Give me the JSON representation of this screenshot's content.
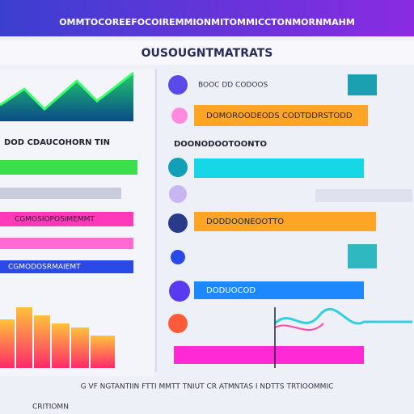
{
  "header": {
    "banner": "OMMTOCOREEFOCOIREMMIONMITOMMICCTONMORNMAHM",
    "title": "OUSOUGNTMATRATS"
  },
  "left": {
    "rows": [
      "DOD CDAUCOHORN TIN",
      "CGMOSIOPOSIMEMMT",
      "CGMODOSRMAIEMT"
    ]
  },
  "right": {
    "rows": [
      "BOOC DD CODOOS",
      "DOMOROODEODS CODTDDRSTODD",
      "DOONODOOTOONTO",
      "DODDOONEOOTTO",
      "DODUOCOD"
    ]
  },
  "footer": {
    "line1": "G VF NGTANTIIN FTTI MMTT TNIUT CR ATMNTAS I NDTTS TRTIOOMMIC",
    "line2": "CRITIOMN"
  }
}
